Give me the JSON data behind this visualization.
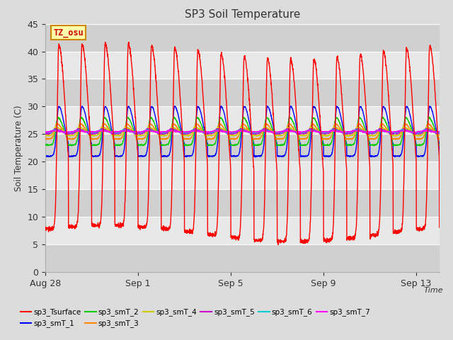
{
  "title": "SP3 Soil Temperature",
  "ylabel": "Soil Temperature (C)",
  "xlabel": "Time",
  "annotation": "TZ_osu",
  "ylim": [
    0,
    45
  ],
  "yticks": [
    0,
    5,
    10,
    15,
    20,
    25,
    30,
    35,
    40,
    45
  ],
  "xtick_labels": [
    "Aug 28",
    "Sep 1",
    "Sep 5",
    "Sep 9",
    "Sep 13"
  ],
  "xtick_positions": [
    0,
    4,
    8,
    12,
    16
  ],
  "fig_bg": "#dcdcdc",
  "plot_bg_dark": "#d0d0d0",
  "plot_bg_light": "#e8e8e8",
  "grid_color": "#ffffff",
  "series": [
    {
      "name": "sp3_Tsurface",
      "color": "#ff0000"
    },
    {
      "name": "sp3_smT_1",
      "color": "#0000ff"
    },
    {
      "name": "sp3_smT_2",
      "color": "#00cc00"
    },
    {
      "name": "sp3_smT_3",
      "color": "#ff8800"
    },
    {
      "name": "sp3_smT_4",
      "color": "#cccc00"
    },
    {
      "name": "sp3_smT_5",
      "color": "#cc00cc"
    },
    {
      "name": "sp3_smT_6",
      "color": "#00cccc"
    },
    {
      "name": "sp3_smT_7",
      "color": "#ff00ff"
    }
  ],
  "n_days": 17,
  "pts_per_day": 144
}
